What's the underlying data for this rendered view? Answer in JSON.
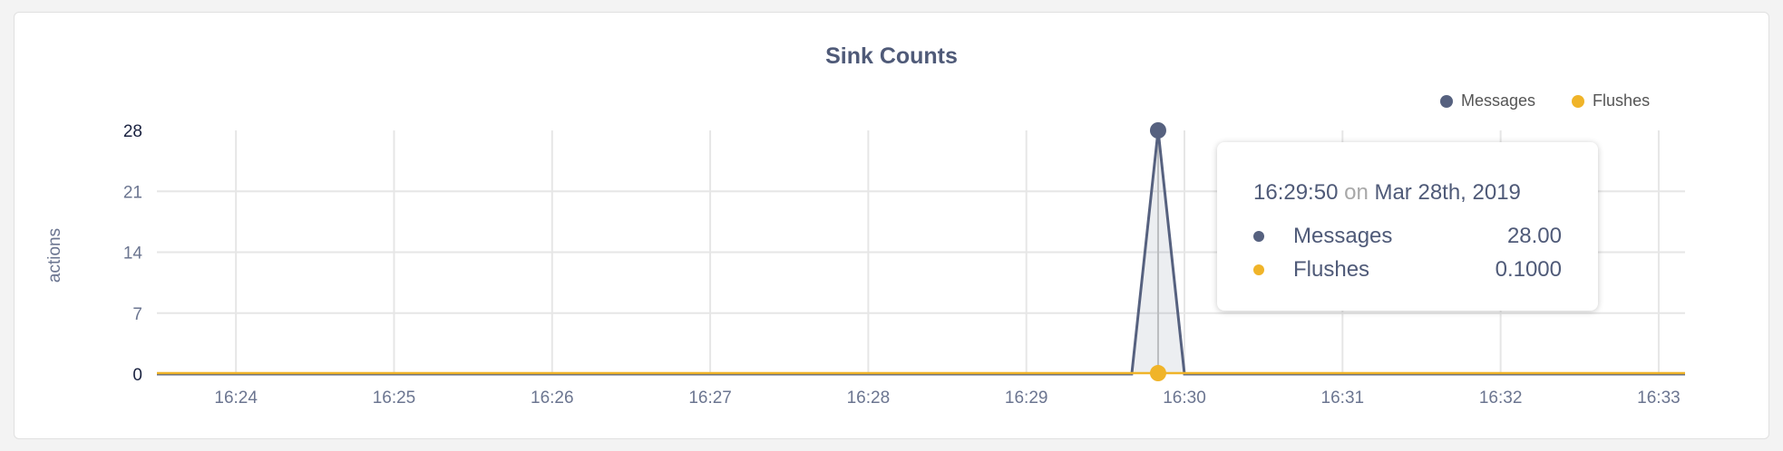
{
  "chart_data": {
    "type": "area",
    "title": "Sink Counts",
    "ylabel": "actions",
    "xlabel": "",
    "ylim": [
      0,
      28
    ],
    "yticks": [
      "0",
      "7",
      "14",
      "21",
      "28"
    ],
    "xlim": [
      "16:23:30",
      "16:33:10"
    ],
    "xticks": [
      "16:24",
      "16:25",
      "16:26",
      "16:27",
      "16:28",
      "16:29",
      "16:30",
      "16:31",
      "16:32",
      "16:33"
    ],
    "grid": true,
    "legend_position": "top-right",
    "x": [
      "16:23:30",
      "16:23:40",
      "16:23:50",
      "16:24:00",
      "16:24:10",
      "16:24:20",
      "16:24:30",
      "16:24:40",
      "16:24:50",
      "16:25:00",
      "16:25:10",
      "16:25:20",
      "16:25:30",
      "16:25:40",
      "16:25:50",
      "16:26:00",
      "16:26:10",
      "16:26:20",
      "16:26:30",
      "16:26:40",
      "16:26:50",
      "16:27:00",
      "16:27:10",
      "16:27:20",
      "16:27:30",
      "16:27:40",
      "16:27:50",
      "16:28:00",
      "16:28:10",
      "16:28:20",
      "16:28:30",
      "16:28:40",
      "16:28:50",
      "16:29:00",
      "16:29:10",
      "16:29:20",
      "16:29:30",
      "16:29:40",
      "16:29:50",
      "16:30:00",
      "16:30:10",
      "16:30:20",
      "16:30:30",
      "16:30:40",
      "16:30:50",
      "16:31:00",
      "16:31:10",
      "16:31:20",
      "16:31:30",
      "16:31:40",
      "16:31:50",
      "16:32:00",
      "16:32:10",
      "16:32:20",
      "16:32:30",
      "16:32:40",
      "16:32:50",
      "16:33:00",
      "16:33:10"
    ],
    "series": [
      {
        "name": "Messages",
        "color": "#56617f",
        "values": [
          0,
          0,
          0,
          0,
          0,
          0,
          0,
          0,
          0,
          0,
          0,
          0,
          0,
          0,
          0,
          0,
          0,
          0,
          0,
          0,
          0,
          0,
          0,
          0,
          0,
          0,
          0,
          0,
          0,
          0,
          0,
          0,
          0,
          0,
          0,
          0,
          0,
          0,
          28,
          0,
          0,
          0,
          0,
          0,
          0,
          0,
          0,
          0,
          0,
          0,
          0,
          0,
          0,
          0,
          0,
          0,
          0,
          0,
          0
        ]
      },
      {
        "name": "Flushes",
        "color": "#f0b429",
        "values": [
          0.1,
          0.1,
          0.1,
          0.1,
          0.1,
          0.1,
          0.1,
          0.1,
          0.1,
          0.1,
          0.1,
          0.1,
          0.1,
          0.1,
          0.1,
          0.1,
          0.1,
          0.1,
          0.1,
          0.1,
          0.1,
          0.1,
          0.1,
          0.1,
          0.1,
          0.1,
          0.1,
          0.1,
          0.1,
          0.1,
          0.1,
          0.1,
          0.1,
          0.1,
          0.1,
          0.1,
          0.1,
          0.1,
          0.1,
          0.1,
          0.1,
          0.1,
          0.1,
          0.1,
          0.1,
          0.1,
          0.1,
          0.1,
          0.1,
          0.1,
          0.1,
          0.1,
          0.1,
          0.1,
          0.1,
          0.1,
          0.1,
          0.1,
          0.1
        ]
      }
    ],
    "highlighted_x": "16:29:50"
  },
  "tooltip": {
    "time": "16:29:50",
    "on": "on",
    "date": "Mar 28th, 2019",
    "rows": [
      {
        "label": "Messages",
        "value": "28.00",
        "color": "#56617f"
      },
      {
        "label": "Flushes",
        "value": "0.1000",
        "color": "#f0b429"
      }
    ]
  }
}
